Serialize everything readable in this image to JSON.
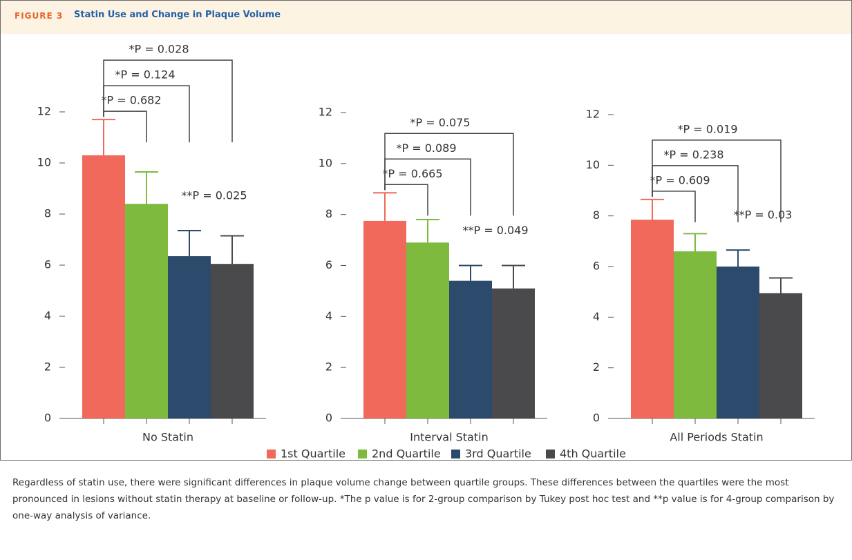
{
  "figure_label": "FIGURE 3",
  "figure_title": "Statin Use and Change in Plaque Volume",
  "caption": "Regardless of statin use, there were significant differences in plaque volume change between quartile groups. These differences between the quartiles were the most pronounced in lesions without statin therapy at baseline or follow-up. *The p value is for 2-group comparison by Tukey post hoc test and **p value is for 4-group comparison by one-way analysis of variance.",
  "chart_data": [
    {
      "type": "bar",
      "categories": [
        "No Statin"
      ],
      "ylim": [
        0,
        12
      ],
      "yticks": [
        0,
        2,
        4,
        6,
        8,
        10,
        12
      ],
      "series": [
        {
          "name": "1st Quartile",
          "color": "#f0695a",
          "values": [
            10.3
          ],
          "errors": [
            1.4
          ]
        },
        {
          "name": "2nd Quartile",
          "color": "#7dba3e",
          "values": [
            8.4
          ],
          "errors": [
            1.25
          ]
        },
        {
          "name": "3rd Quartile",
          "color": "#2c4a6b",
          "values": [
            6.35
          ],
          "errors": [
            1.0
          ]
        },
        {
          "name": "4th Quartile",
          "color": "#4a4a4c",
          "values": [
            6.05
          ],
          "errors": [
            1.1
          ]
        }
      ],
      "comparisons": [
        "*P = 0.682",
        "*P = 0.124",
        "*P = 0.028"
      ],
      "anova": "**P = 0.025"
    },
    {
      "type": "bar",
      "categories": [
        "Interval Statin"
      ],
      "ylim": [
        0,
        12
      ],
      "yticks": [
        0,
        2,
        4,
        6,
        8,
        10,
        12
      ],
      "series": [
        {
          "name": "1st Quartile",
          "color": "#f0695a",
          "values": [
            7.75
          ],
          "errors": [
            1.1
          ]
        },
        {
          "name": "2nd Quartile",
          "color": "#7dba3e",
          "values": [
            6.9
          ],
          "errors": [
            0.9
          ]
        },
        {
          "name": "3rd Quartile",
          "color": "#2c4a6b",
          "values": [
            5.4
          ],
          "errors": [
            0.6
          ]
        },
        {
          "name": "4th Quartile",
          "color": "#4a4a4c",
          "values": [
            5.1
          ],
          "errors": [
            0.9
          ]
        }
      ],
      "comparisons": [
        "*P = 0.665",
        "*P = 0.089",
        "*P = 0.075"
      ],
      "anova": "**P = 0.049"
    },
    {
      "type": "bar",
      "categories": [
        "All Periods Statin"
      ],
      "ylim": [
        0,
        12
      ],
      "yticks": [
        0,
        2,
        4,
        6,
        8,
        10,
        12
      ],
      "series": [
        {
          "name": "1st Quartile",
          "color": "#f0695a",
          "values": [
            7.85
          ],
          "errors": [
            0.8
          ]
        },
        {
          "name": "2nd Quartile",
          "color": "#7dba3e",
          "values": [
            6.6
          ],
          "errors": [
            0.7
          ]
        },
        {
          "name": "3rd Quartile",
          "color": "#2c4a6b",
          "values": [
            6.0
          ],
          "errors": [
            0.65
          ]
        },
        {
          "name": "4th Quartile",
          "color": "#4a4a4c",
          "values": [
            4.95
          ],
          "errors": [
            0.6
          ]
        }
      ],
      "comparisons": [
        "*P = 0.609",
        "*P = 0.238",
        "*P = 0.019"
      ],
      "anova": "**P = 0.03"
    }
  ]
}
